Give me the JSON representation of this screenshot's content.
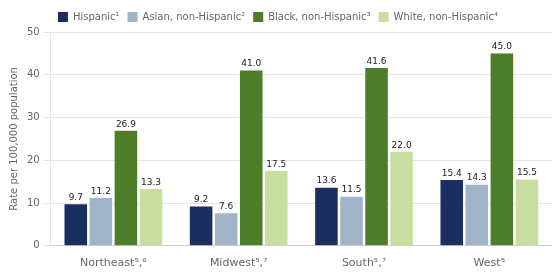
{
  "chart_data": {
    "type": "bar",
    "categories": [
      "Northeast⁵,⁶",
      "Midwest⁵,⁷",
      "South⁵,⁷",
      "West⁵"
    ],
    "series": [
      {
        "name": "Hispanic¹",
        "color": "#1b2f5e",
        "values": [
          9.7,
          9.2,
          13.6,
          15.4
        ],
        "value_labels": [
          "9.7",
          "9.2",
          "13.6",
          "15.4"
        ]
      },
      {
        "name": "Asian, non-Hispanic²",
        "color": "#a0b4c8",
        "values": [
          11.2,
          7.6,
          11.5,
          14.3
        ],
        "value_labels": [
          "11.2",
          "7.6",
          "11.5",
          "14.3"
        ]
      },
      {
        "name": "Black, non-Hispanic³",
        "color": "#4e7d2a",
        "values": [
          26.9,
          41.0,
          41.6,
          45.0
        ],
        "value_labels": [
          "26.9",
          "41.0",
          "41.6",
          "45.0"
        ]
      },
      {
        "name": "White, non-Hispanic⁴",
        "color": "#c8dea0",
        "values": [
          13.3,
          17.5,
          22.0,
          15.5
        ],
        "value_labels": [
          "13.3",
          "17.5",
          "22.0",
          "15.5"
        ]
      }
    ],
    "ylabel": "Rate per 100,000 population",
    "ylim": [
      0,
      50
    ],
    "yticks": [
      0,
      10,
      20,
      30,
      40,
      50
    ],
    "grid": true,
    "legend": "top",
    "data_labels": true
  }
}
